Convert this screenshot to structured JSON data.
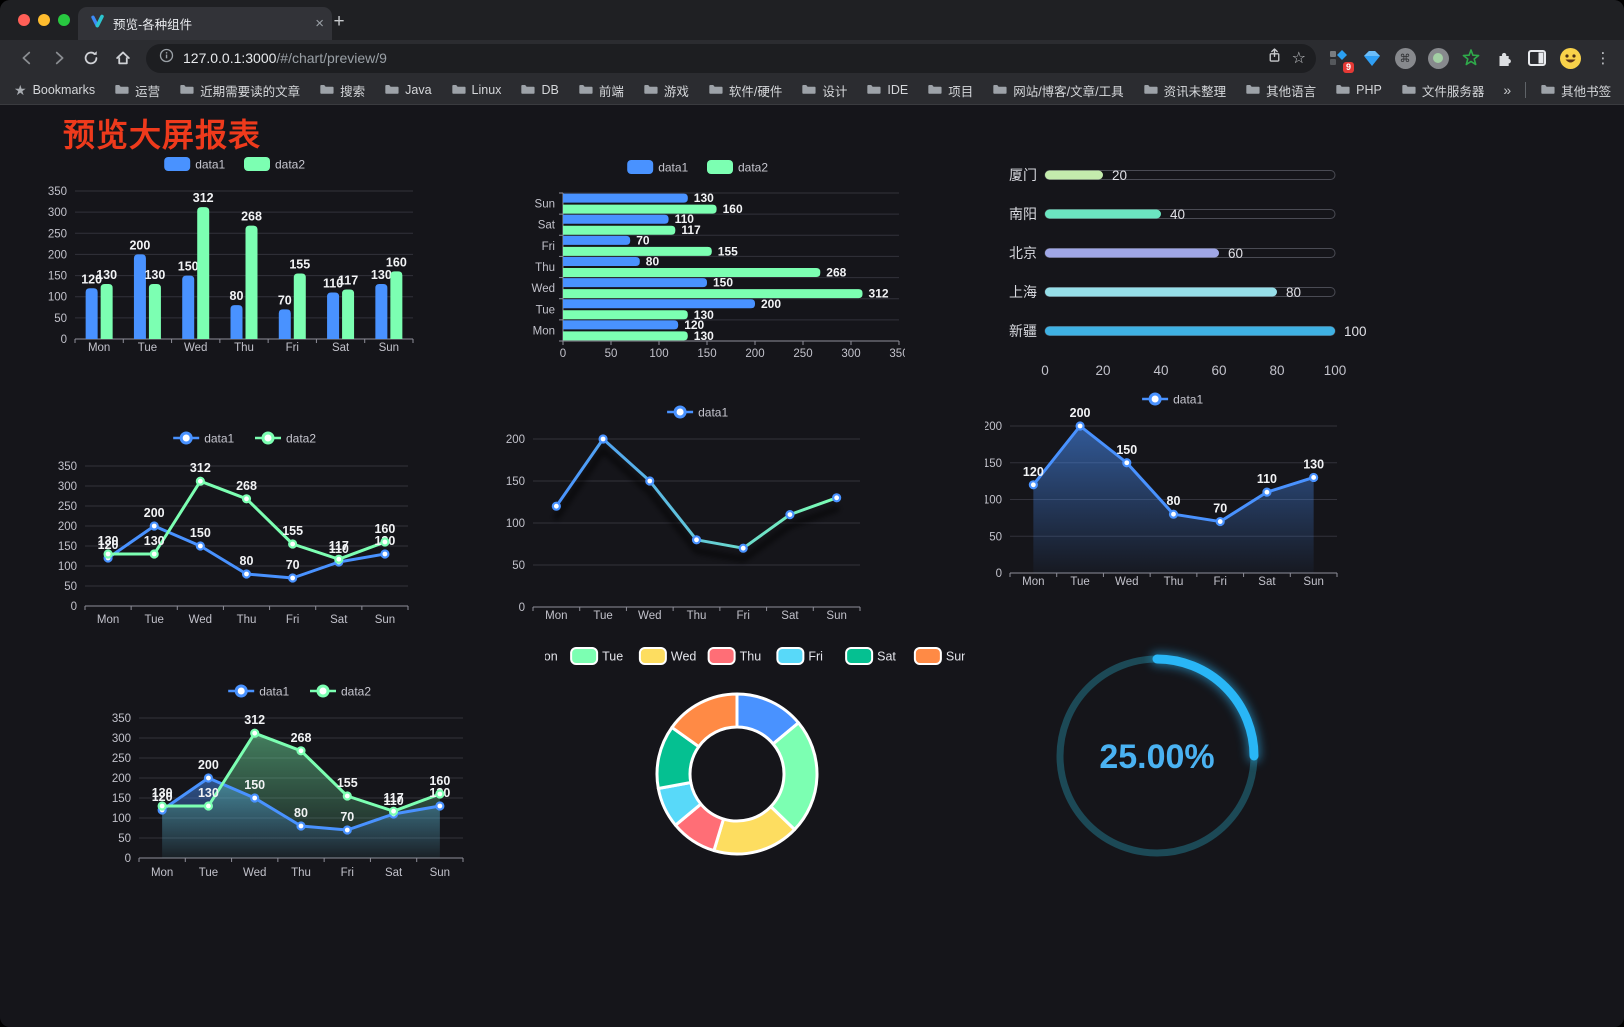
{
  "browser": {
    "tab_title": "预览-各种组件",
    "url_host": "127.0.0.1:3000",
    "url_path": "/#/chart/preview/9",
    "extension_badge": "9",
    "bookmarks_label": "Bookmarks",
    "folders": [
      "运营",
      "近期需要读的文章",
      "搜索",
      "Java",
      "Linux",
      "DB",
      "前端",
      "游戏",
      "软件/硬件",
      "设计",
      "IDE",
      "项目",
      "网站/博客/文章/工具",
      "资讯未整理",
      "其他语言",
      "PHP",
      "文件服务器"
    ],
    "overflow": "»",
    "other_bookmarks": "其他书签"
  },
  "page": {
    "title": "预览大屏报表",
    "title_color": "#ee3a1c",
    "background": "#15151a"
  },
  "chart_data": [
    {
      "name": "grouped-bar",
      "type": "bar",
      "legend": [
        "data1",
        "data2"
      ],
      "categories": [
        "Mon",
        "Tue",
        "Wed",
        "Thu",
        "Fri",
        "Sat",
        "Sun"
      ],
      "series": [
        {
          "name": "data1",
          "color": "#4992ff",
          "values": [
            120,
            200,
            150,
            80,
            70,
            110,
            130
          ]
        },
        {
          "name": "data2",
          "color": "#7cffb2",
          "values": [
            130,
            130,
            312,
            268,
            155,
            117,
            160
          ]
        }
      ],
      "ylim": [
        0,
        350
      ],
      "ytick": 50,
      "value_labels": true,
      "legend_position": "top"
    },
    {
      "name": "horizontal-grouped-bar",
      "type": "bar-horizontal",
      "legend": [
        "data1",
        "data2"
      ],
      "categories": [
        "Sun",
        "Sat",
        "Fri",
        "Thu",
        "Wed",
        "Tue",
        "Mon"
      ],
      "series": [
        {
          "name": "data1",
          "color": "#4992ff",
          "values": [
            130,
            110,
            70,
            80,
            150,
            200,
            120
          ]
        },
        {
          "name": "data2",
          "color": "#7cffb2",
          "values": [
            160,
            117,
            155,
            268,
            312,
            130,
            130
          ]
        }
      ],
      "xlim": [
        0,
        350
      ],
      "xtick": 50,
      "value_labels": true,
      "legend_position": "top"
    },
    {
      "name": "capsule-progress-bars",
      "type": "capsule",
      "xlim": [
        0,
        100
      ],
      "xticks": [
        0,
        20,
        40,
        60,
        80,
        100
      ],
      "rows": [
        {
          "label": "厦门",
          "value": 20,
          "color": "#c4ebad"
        },
        {
          "label": "南阳",
          "value": 40,
          "color": "#6be6c1"
        },
        {
          "label": "北京",
          "value": 60,
          "color": "#a0a7e6"
        },
        {
          "label": "上海",
          "value": 80,
          "color": "#96dee8"
        },
        {
          "label": "新疆",
          "value": 100,
          "color": "#3fb1e3"
        }
      ]
    },
    {
      "name": "line-two-series",
      "type": "line",
      "legend": [
        "data1",
        "data2"
      ],
      "categories": [
        "Mon",
        "Tue",
        "Wed",
        "Thu",
        "Fri",
        "Sat",
        "Sun"
      ],
      "series": [
        {
          "name": "data1",
          "color": "#4992ff",
          "values": [
            120,
            200,
            150,
            80,
            70,
            110,
            130
          ]
        },
        {
          "name": "data2",
          "color": "#7cffb2",
          "values": [
            130,
            130,
            312,
            268,
            155,
            117,
            160
          ]
        }
      ],
      "ylim": [
        0,
        350
      ],
      "ytick": 50,
      "value_labels": true
    },
    {
      "name": "gradient-line",
      "type": "line-gradient",
      "legend": [
        "data1"
      ],
      "categories": [
        "Mon",
        "Tue",
        "Wed",
        "Thu",
        "Fri",
        "Sat",
        "Sun"
      ],
      "series": [
        {
          "name": "data1",
          "gradient": [
            "#4992ff",
            "#7cffb2"
          ],
          "values": [
            120,
            200,
            150,
            80,
            70,
            110,
            130
          ]
        }
      ],
      "ylim": [
        0,
        200
      ],
      "ytick": 50,
      "value_labels": false
    },
    {
      "name": "area-line-single",
      "type": "line-area",
      "legend": [
        "data1"
      ],
      "categories": [
        "Mon",
        "Tue",
        "Wed",
        "Thu",
        "Fri",
        "Sat",
        "Sun"
      ],
      "series": [
        {
          "name": "data1",
          "color": "#4992ff",
          "values": [
            120,
            200,
            150,
            80,
            70,
            110,
            130
          ],
          "area": true
        }
      ],
      "ylim": [
        0,
        200
      ],
      "ytick": 50,
      "value_labels": true
    },
    {
      "name": "area-line-two",
      "type": "line-area",
      "legend": [
        "data1",
        "data2"
      ],
      "categories": [
        "Mon",
        "Tue",
        "Wed",
        "Thu",
        "Fri",
        "Sat",
        "Sun"
      ],
      "series": [
        {
          "name": "data1",
          "color": "#4992ff",
          "values": [
            120,
            200,
            150,
            80,
            70,
            110,
            130
          ],
          "area": true
        },
        {
          "name": "data2",
          "color": "#7cffb2",
          "values": [
            130,
            130,
            312,
            268,
            155,
            117,
            160
          ],
          "area": true
        }
      ],
      "ylim": [
        0,
        350
      ],
      "ytick": 50,
      "value_labels": true
    },
    {
      "name": "donut-pie",
      "type": "pie",
      "legend": [
        "Mon",
        "Tue",
        "Wed",
        "Thu",
        "Fri",
        "Sat",
        "Sun"
      ],
      "values": [
        120,
        200,
        150,
        80,
        70,
        110,
        130
      ],
      "colors": [
        "#4992ff",
        "#7cffb2",
        "#fddd60",
        "#ff6e76",
        "#58d9f9",
        "#05c091",
        "#ff8a45"
      ]
    },
    {
      "name": "progress-gauge",
      "type": "gauge",
      "label": "25.00%",
      "percent": 25,
      "color": "#29b6f6",
      "track_color": "#1c4956",
      "text_color": "#4ab2f2"
    }
  ]
}
